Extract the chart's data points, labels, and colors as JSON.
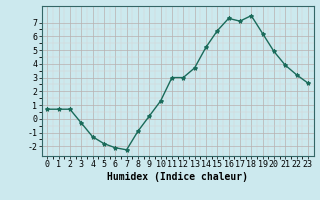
{
  "x": [
    0,
    1,
    2,
    3,
    4,
    5,
    6,
    7,
    8,
    9,
    10,
    11,
    12,
    13,
    14,
    15,
    16,
    17,
    18,
    19,
    20,
    21,
    22,
    23
  ],
  "y": [
    0.7,
    0.7,
    0.7,
    -0.3,
    -1.3,
    -1.8,
    -2.1,
    -2.25,
    -0.9,
    0.2,
    1.3,
    3.0,
    3.0,
    3.7,
    5.2,
    6.4,
    7.3,
    7.1,
    7.5,
    6.2,
    4.9,
    3.9,
    3.2,
    2.6
  ],
  "line_color": "#1a6b5a",
  "marker": "*",
  "marker_size": 3,
  "bg_color": "#cce9ee",
  "grid_major_color": "#b8b0b0",
  "grid_minor_color": "#d8d0d0",
  "xlabel": "Humidex (Indice chaleur)",
  "xlabel_fontsize": 7,
  "tick_fontsize": 6,
  "ylim": [
    -2.7,
    8.2
  ],
  "xlim": [
    -0.5,
    23.5
  ],
  "yticks": [
    -2,
    -1,
    0,
    1,
    2,
    3,
    4,
    5,
    6,
    7
  ],
  "xticks": [
    0,
    1,
    2,
    3,
    4,
    5,
    6,
    7,
    8,
    9,
    10,
    11,
    12,
    13,
    14,
    15,
    16,
    17,
    18,
    19,
    20,
    21,
    22,
    23
  ],
  "spine_color": "#336666",
  "linewidth": 1.0
}
